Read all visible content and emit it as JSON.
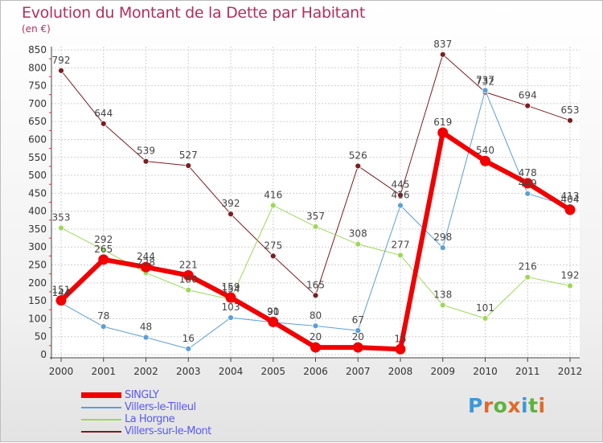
{
  "header": {
    "title": "Evolution du Montant de la Dette par Habitant",
    "unit": "(en €)"
  },
  "logo": {
    "text": "Proxiti"
  },
  "chart_data": {
    "type": "line",
    "x": [
      "2000",
      "2001",
      "2002",
      "2003",
      "2004",
      "2005",
      "2006",
      "2007",
      "2008",
      "2009",
      "2010",
      "2011",
      "2012"
    ],
    "ylim": [
      0,
      850
    ],
    "yticks": [
      0,
      50,
      100,
      150,
      200,
      250,
      300,
      350,
      400,
      450,
      500,
      550,
      600,
      650,
      700,
      750,
      800,
      850
    ],
    "grid": true,
    "legend_position": "bottom-left",
    "series": [
      {
        "name": "Villers-sur-le-Mont",
        "color": "#7a1e22",
        "width": 1,
        "values": [
          792,
          644,
          539,
          527,
          392,
          275,
          165,
          526,
          445,
          837,
          732,
          694,
          653
        ]
      },
      {
        "name": "La Horgne",
        "color": "#9ed85a",
        "width": 1,
        "values": [
          353,
          292,
          228,
          180,
          154,
          416,
          357,
          308,
          277,
          138,
          101,
          216,
          192
        ]
      },
      {
        "name": "Villers-le-Tilleul",
        "color": "#5d9fd5",
        "width": 1,
        "values": [
          144,
          78,
          48,
          16,
          103,
          90,
          80,
          67,
          416,
          298,
          737,
          449,
          413
        ]
      },
      {
        "name": "SINGLY",
        "color": "#f00000",
        "width": 6,
        "values": [
          151,
          265,
          244,
          221,
          159,
          91,
          20,
          20,
          15,
          619,
          540,
          478,
          404
        ]
      }
    ],
    "legend_order": [
      "SINGLY",
      "Villers-le-Tilleul",
      "La Horgne",
      "Villers-sur-le-Mont"
    ]
  }
}
